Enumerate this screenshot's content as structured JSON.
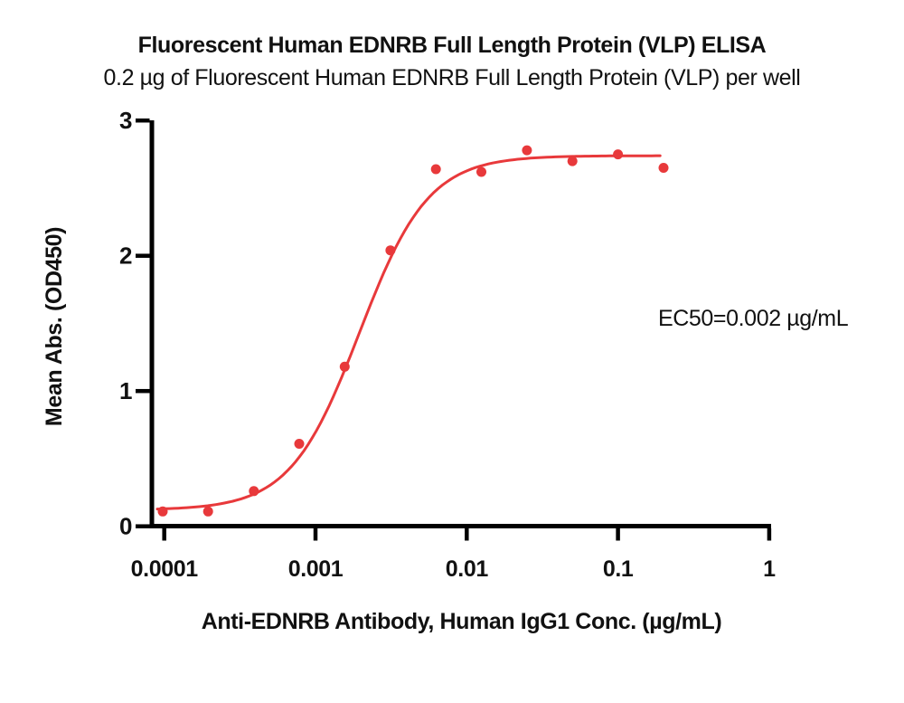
{
  "header": {
    "title": "Fluorescent Human EDNRB Full Length Protein (VLP) ELISA",
    "subtitle": "0.2 µg of Fluorescent Human EDNRB Full Length Protein (VLP) per well"
  },
  "annotation": {
    "ec50_label": "EC50=0.002 µg/mL"
  },
  "chart_data": {
    "type": "scatter",
    "title": "Fluorescent Human EDNRB Full Length Protein (VLP) ELISA",
    "subtitle": "0.2 µg of Fluorescent Human EDNRB Full Length Protein (VLP) per well",
    "xlabel": "Anti-EDNRB Antibody, Human IgG1 Conc. (µg/mL)",
    "ylabel": "Mean Abs. (OD450)",
    "x_scale": "log",
    "xlim": [
      0.0001,
      1
    ],
    "ylim": [
      0,
      3
    ],
    "x_ticks": [
      0.0001,
      0.001,
      0.01,
      0.1,
      1
    ],
    "x_tick_labels": [
      "0.0001",
      "0.001",
      "0.01",
      "0.1",
      "1"
    ],
    "y_ticks": [
      0,
      1,
      2,
      3
    ],
    "y_tick_labels": [
      "0",
      "1",
      "2",
      "3"
    ],
    "grid": false,
    "legend": "none",
    "points": {
      "x": [
        9.77e-05,
        0.000195,
        0.000391,
        0.000781,
        0.00156,
        0.00313,
        0.00625,
        0.0125,
        0.025,
        0.05,
        0.1,
        0.2
      ],
      "y": [
        0.11,
        0.11,
        0.26,
        0.61,
        1.18,
        2.04,
        2.64,
        2.62,
        2.78,
        2.7,
        2.75,
        2.65
      ]
    },
    "fit_curve": {
      "model": "4PL",
      "bottom": 0.12,
      "top": 2.74,
      "ec50": 0.00195,
      "hill": 1.9,
      "x_start": 9e-05,
      "x_end": 0.19
    },
    "ec50_annotation": "EC50=0.002 µg/mL",
    "colors": {
      "series": "#e8393b",
      "axis": "#000000",
      "text": "#111111"
    }
  }
}
